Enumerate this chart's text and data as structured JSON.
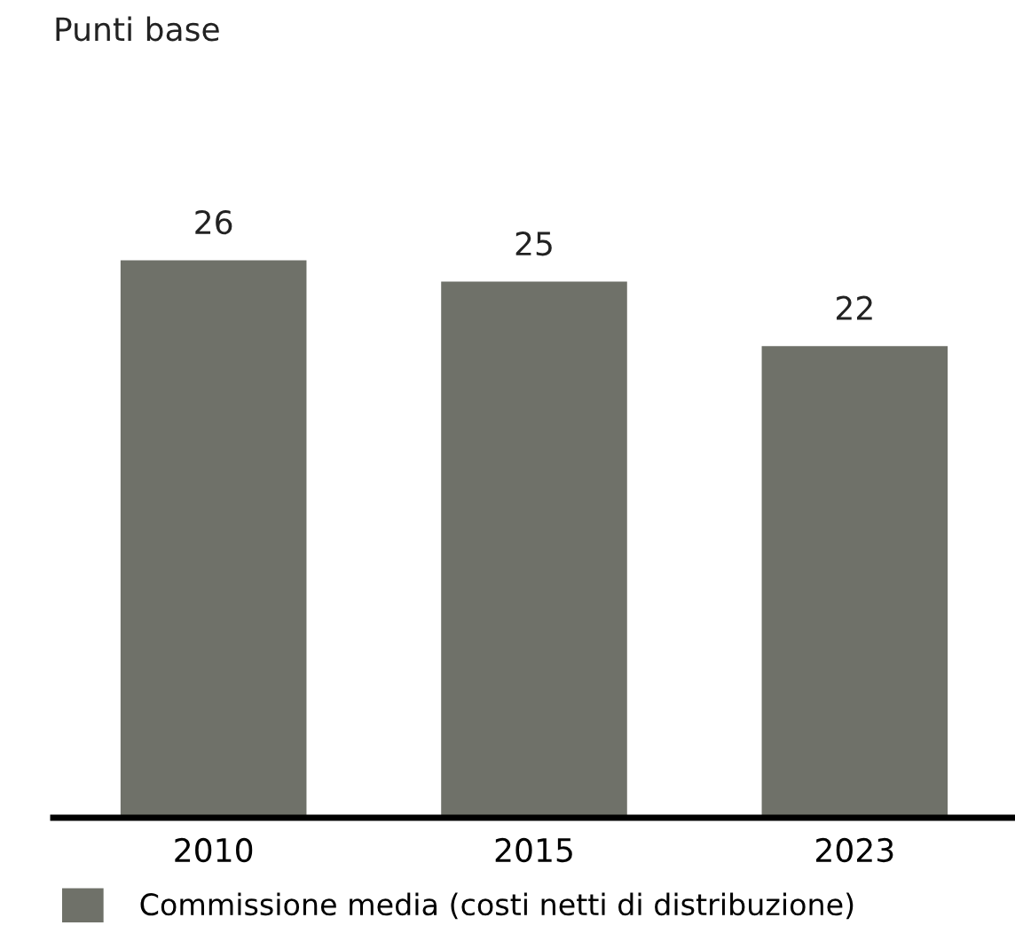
{
  "chart_data": {
    "type": "bar",
    "title": "Punti base",
    "categories": [
      "2010",
      "2015",
      "2023"
    ],
    "series": [
      {
        "name": "Commissione media (costi netti di distribuzione)",
        "color": "#6f7169",
        "values": [
          26,
          25,
          22
        ]
      }
    ],
    "data_labels": true,
    "legend": "bottom left",
    "grid": false,
    "tick_labels": "x"
  }
}
